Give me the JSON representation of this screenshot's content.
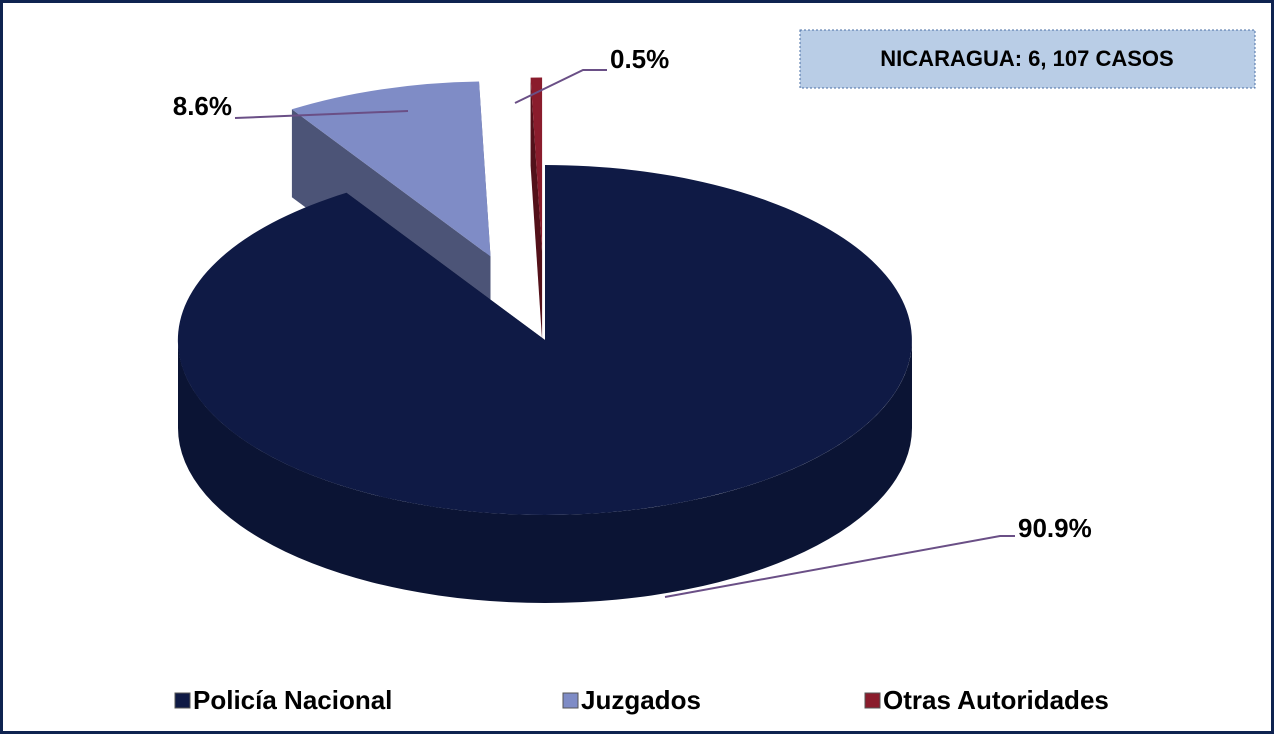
{
  "chart_data": {
    "type": "pie",
    "categories": [
      "Policía Nacional",
      "Juzgados",
      "Otras Autoridades"
    ],
    "values": [
      90.9,
      8.6,
      0.5
    ],
    "value_labels": [
      "90.9%",
      "8.6%",
      "0.5%"
    ],
    "colors": [
      "#0f1a45",
      "#7f8cc6",
      "#8a1c2c"
    ],
    "annotation": "NICARAGUA: 6, 107 CASOS",
    "legend": "bottom"
  }
}
